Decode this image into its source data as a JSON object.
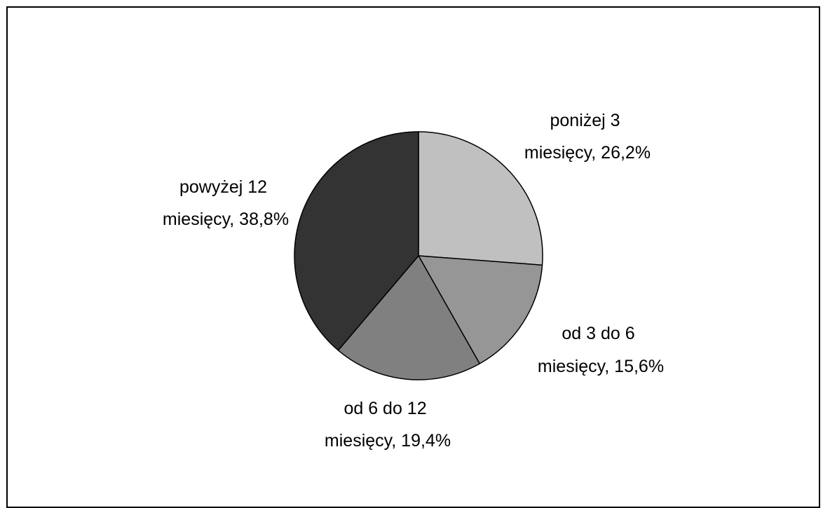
{
  "chart_data": {
    "type": "pie",
    "slices": [
      {
        "label_line1": "poniżej 3",
        "label_line2": "miesięcy, 26,2%",
        "value": 26.2,
        "color": "#c0c0c0"
      },
      {
        "label_line1": "od 3 do 6",
        "label_line2": "miesięcy, 15,6%",
        "value": 15.6,
        "color": "#969696"
      },
      {
        "label_line1": "od 6 do 12",
        "label_line2": "miesięcy, 19,4%",
        "value": 19.4,
        "color": "#808080"
      },
      {
        "label_line1": "powyżej 12",
        "label_line2": "miesięcy, 38,8%",
        "value": 38.8,
        "color": "#333333"
      }
    ],
    "start_angle": "12 o'clock",
    "direction": "clockwise",
    "legend": "none",
    "data_labels": "outside"
  }
}
